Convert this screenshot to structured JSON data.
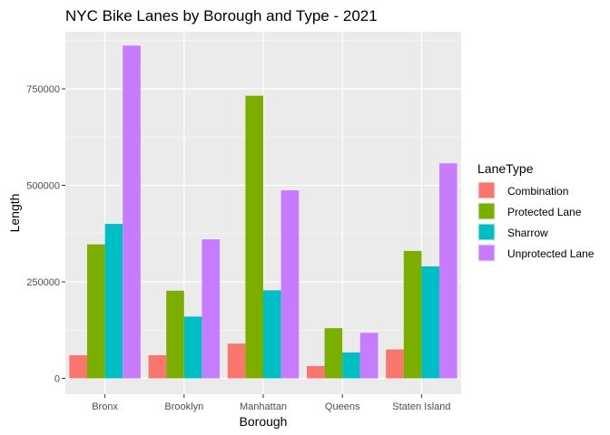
{
  "chart_data": {
    "type": "bar",
    "title": "NYC Bike Lanes by Borough and Type - 2021",
    "xlabel": "Borough",
    "ylabel": "Length",
    "categories": [
      "Bronx",
      "Brooklyn",
      "Manhattan",
      "Queens",
      "Staten Island"
    ],
    "series": [
      {
        "name": "Combination",
        "color": "#F8766D",
        "values": [
          60000,
          60000,
          90000,
          32000,
          75000
        ]
      },
      {
        "name": "Protected Lane",
        "color": "#7CAE00",
        "values": [
          347000,
          227000,
          732000,
          130000,
          330000
        ]
      },
      {
        "name": "Sharrow",
        "color": "#00BFC4",
        "values": [
          400000,
          160000,
          228000,
          67000,
          290000
        ]
      },
      {
        "name": "Unprotected Lane",
        "color": "#C77CFF",
        "values": [
          862000,
          360000,
          487000,
          118000,
          557000
        ]
      }
    ],
    "ylim": [
      0,
      900000
    ],
    "yticks": [
      0,
      250000,
      500000,
      750000
    ],
    "ytick_labels": [
      "0",
      "250000",
      "500000",
      "750000"
    ],
    "legend_title": "LaneType",
    "legend_position": "right",
    "grid": true,
    "panel_background": "#EBEBEB"
  }
}
